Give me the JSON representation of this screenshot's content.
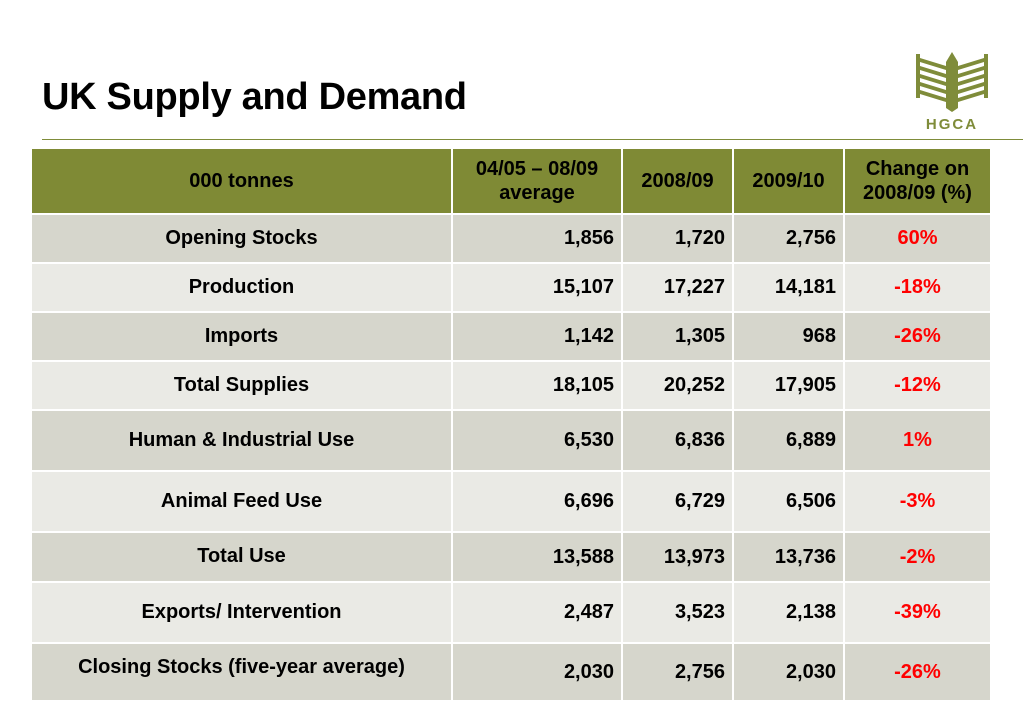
{
  "slide": {
    "title": "UK Supply and Demand"
  },
  "logo": {
    "text": "HGCA",
    "icon": "wheat-sheaf-icon",
    "color": "#7f8c3a"
  },
  "table": {
    "headers": [
      "000 tonnes",
      "04/05 – 08/09 average",
      "2008/09",
      "2009/10",
      "Change on 2008/09 (%)"
    ],
    "header_color": "#7f8a35",
    "negative_color": "#ff0000",
    "rows": [
      {
        "label": "Opening Stocks",
        "avg": "1,856",
        "y2008": "1,720",
        "y2009": "2,756",
        "change": "60%"
      },
      {
        "label": "Production",
        "avg": "15,107",
        "y2008": "17,227",
        "y2009": "14,181",
        "change": "-18%"
      },
      {
        "label": "Imports",
        "avg": "1,142",
        "y2008": "1,305",
        "y2009": "968",
        "change": "-26%"
      },
      {
        "label": "Total Supplies",
        "avg": "18,105",
        "y2008": "20,252",
        "y2009": "17,905",
        "change": "-12%"
      },
      {
        "label": "Human & Industrial Use",
        "avg": "6,530",
        "y2008": "6,836",
        "y2009": "6,889",
        "change": "1%"
      },
      {
        "label": "Animal Feed Use",
        "avg": "6,696",
        "y2008": "6,729",
        "y2009": "6,506",
        "change": "-3%"
      },
      {
        "label": "Total Use",
        "avg": "13,588",
        "y2008": "13,973",
        "y2009": "13,736",
        "change": "-2%"
      },
      {
        "label": "Exports/ Intervention",
        "avg": "2,487",
        "y2008": "3,523",
        "y2009": "2,138",
        "change": "-39%"
      },
      {
        "label": "Closing Stocks (five-year average)",
        "avg": "2,030",
        "y2008": "2,756",
        "y2009": "2,030",
        "change": "-26%"
      }
    ]
  }
}
